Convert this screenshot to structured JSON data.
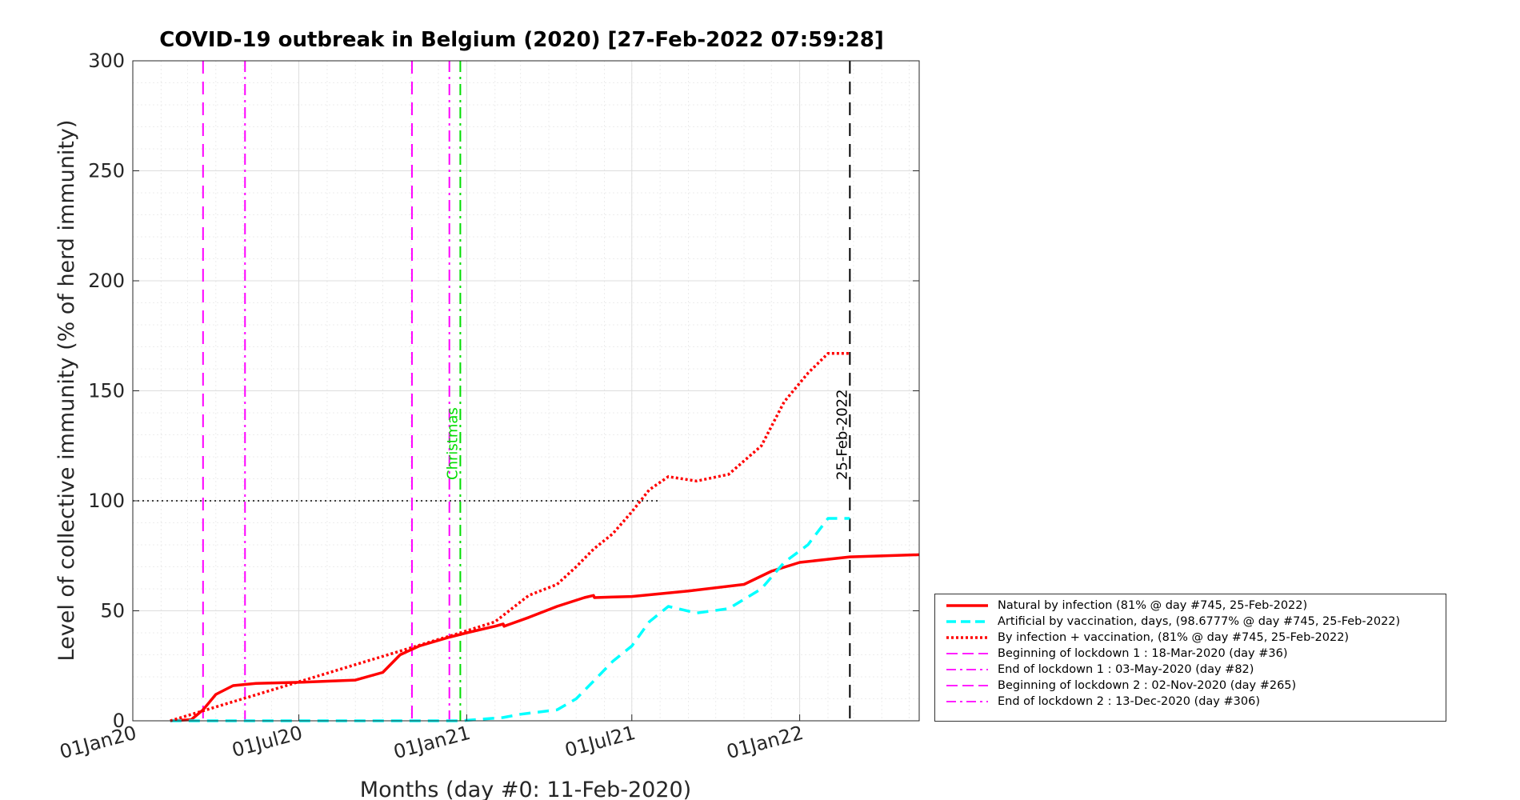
{
  "chart_data": {
    "type": "line",
    "title": "COVID-19 outbreak in Belgium (2020) [27-Feb-2022 07:59:28]",
    "xlabel": "Months (day #0: 11-Feb-2020)",
    "ylabel": "Level of collective immunity (% of herd immunity)",
    "ylim": [
      0,
      300
    ],
    "yticks": [
      0,
      50,
      100,
      150,
      200,
      250,
      300
    ],
    "xlim": [
      "2020-01-01",
      "2022-05-12"
    ],
    "xticks": [
      {
        "date": "2020-01-01",
        "label": "01Jan20"
      },
      {
        "date": "2020-07-01",
        "label": "01Jul20"
      },
      {
        "date": "2021-01-01",
        "label": "01Jan21"
      },
      {
        "date": "2021-07-01",
        "label": "01Jul21"
      },
      {
        "date": "2022-01-01",
        "label": "01Jan22"
      }
    ],
    "grid": true,
    "legend_position": "bottom-right-outside",
    "herd_immunity_level": 100,
    "series": [
      {
        "name": "Natural by infection (81% @ day #745, 25-Feb-2022)",
        "color": "#ff0000",
        "style": "solid",
        "x": [
          "2020-02-11",
          "2020-03-05",
          "2020-03-18",
          "2020-04-01",
          "2020-04-20",
          "2020-05-15",
          "2020-07-01",
          "2020-09-01",
          "2020-10-01",
          "2020-10-20",
          "2020-11-10",
          "2020-12-13",
          "2021-01-01",
          "2021-02-01",
          "2021-02-10",
          "2021-02-11",
          "2021-03-10",
          "2021-04-10",
          "2021-05-10",
          "2021-05-20",
          "2021-05-21",
          "2021-07-01",
          "2021-09-01",
          "2021-11-01",
          "2021-12-01",
          "2022-01-01",
          "2022-02-25",
          "2022-05-12"
        ],
        "y": [
          0,
          0.5,
          5,
          12,
          16,
          17,
          17.5,
          18.5,
          22,
          30,
          34,
          38,
          40,
          43,
          44,
          43,
          47,
          52,
          56,
          57,
          56,
          56.5,
          59,
          62,
          68,
          72,
          74.5,
          75.5
        ]
      },
      {
        "name": "Artificial by vaccination, days, (98.6777% @ day #745, 25-Feb-2022)",
        "color": "#00ffff",
        "style": "dashed",
        "x": [
          "2020-02-11",
          "2020-12-25",
          "2021-01-10",
          "2021-02-10",
          "2021-03-01",
          "2021-04-10",
          "2021-05-01",
          "2021-05-20",
          "2021-06-10",
          "2021-07-01",
          "2021-07-20",
          "2021-08-10",
          "2021-09-10",
          "2021-10-15",
          "2021-11-20",
          "2021-12-15",
          "2022-01-10",
          "2022-02-01",
          "2022-02-25"
        ],
        "y": [
          0,
          0,
          0.5,
          1.5,
          3,
          5,
          10,
          18,
          27,
          34,
          45,
          52,
          49,
          51,
          60,
          72,
          80,
          92,
          92
        ]
      },
      {
        "name": "By infection + vaccination, (81% @ day #745, 25-Feb-2022)",
        "color": "#ff0000",
        "style": "dotted",
        "x": [
          "2020-02-11",
          "2020-12-25",
          "2021-02-01",
          "2021-03-10",
          "2021-04-10",
          "2021-05-01",
          "2021-05-20",
          "2021-06-10",
          "2021-07-01",
          "2021-07-20",
          "2021-08-10",
          "2021-09-10",
          "2021-10-15",
          "2021-11-20",
          "2021-12-15",
          "2022-01-10",
          "2022-02-01",
          "2022-02-25"
        ],
        "y": [
          0,
          40,
          45,
          57,
          62,
          70,
          78,
          85,
          95,
          105,
          111,
          109,
          112,
          125,
          145,
          158,
          167,
          167
        ]
      }
    ],
    "vertical_lines": [
      {
        "date": "2020-03-18",
        "style": "dashed",
        "color": "#ff00ff",
        "legend": "Beginning of lockdown 1 : 18-Mar-2020 (day #36)"
      },
      {
        "date": "2020-05-03",
        "style": "dashdot",
        "color": "#ff00ff",
        "legend": "End of lockdown 1 : 03-May-2020 (day #82)"
      },
      {
        "date": "2020-11-02",
        "style": "dashed",
        "color": "#ff00ff",
        "legend": "Beginning of lockdown 2 : 02-Nov-2020 (day #265)"
      },
      {
        "date": "2020-12-13",
        "style": "dashdot",
        "color": "#ff00ff",
        "legend": "End of lockdown 2 : 13-Dec-2020 (day #306)"
      },
      {
        "date": "2020-12-25",
        "style": "dashdot",
        "color": "#00dd00",
        "label": "Christmas"
      },
      {
        "date": "2022-02-25",
        "style": "dashed",
        "color": "#000000",
        "label": "25-Feb-2022"
      }
    ]
  }
}
